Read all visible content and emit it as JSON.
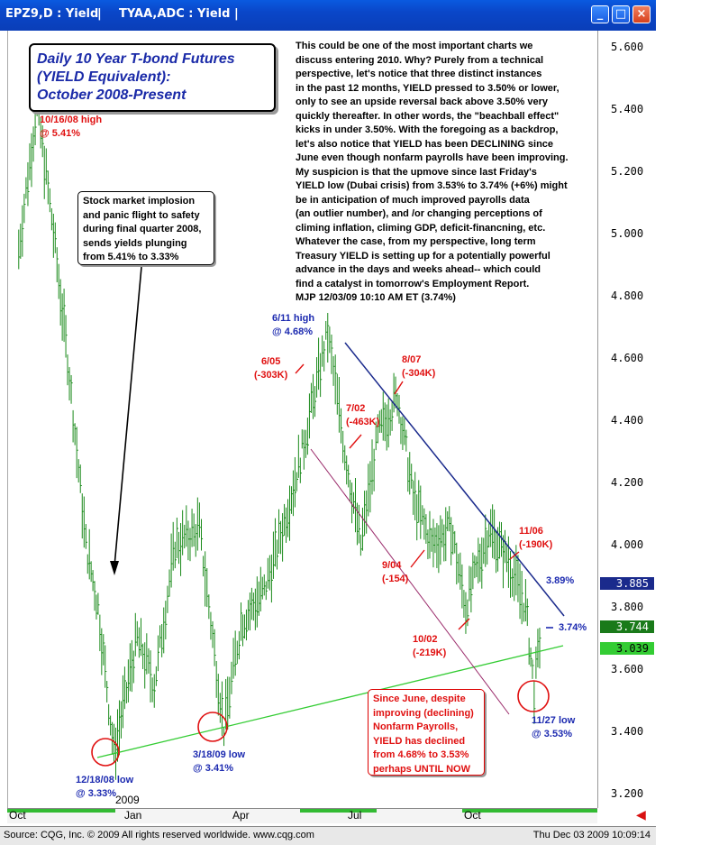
{
  "window": {
    "title_left": "EPZ9,D : Yield",
    "title_right": "TYAA,ADC : Yield",
    "buttons": [
      "minimize",
      "maximize",
      "close"
    ]
  },
  "chart_title": [
    "Daily 10 Year T-bond Futures",
    "(YIELD Equivalent):",
    "October 2008-Present"
  ],
  "commentary": [
    "This could be one of the most important charts we",
    "discuss entering 2010. Why? Purely from a technical",
    "perspective, let's notice that three distinct instances",
    "in the past 12 months, YIELD pressed to 3.50% or lower,",
    "only to see an upside reversal back above 3.50% very",
    "quickly thereafter. In other words, the \"beachball effect\"",
    "kicks in under 3.50%. With the foregoing as a backdrop,",
    "let's also notice that YIELD has been DECLINING since",
    "June even though nonfarm payrolls have been improving.",
    "My suspicion is that the upmove since last Friday's",
    "YIELD low (Dubai crisis) from 3.53% to 3.74% (+6%) might",
    "be in anticipation of much improved payrolls data",
    "(an outlier number),  and /or changing perceptions of",
    "climing inflation, climing GDP, deficit-financning, etc.",
    "Whatever the case, from my perspective, long term",
    "Treasury YIELD is setting up for a potentially powerful",
    "advance in the days and weeks ahead-- which could",
    "find a catalyst in tomorrow's Employment Report.",
    "MJP  12/03/09  10:10 AM ET  (3.74%)"
  ],
  "stock_note": [
    "Stock market implosion",
    "and panic flight to safety",
    "during final quarter 2008,",
    "sends yields plunging",
    "from 5.41% to 3.33%"
  ],
  "june_note": [
    "Since June, despite",
    "improving (declining)",
    "Nonfarm Payrolls,",
    "YIELD has declined",
    "from 4.68% to 3.53%",
    "perhaps UNTIL NOW"
  ],
  "labels": {
    "high_1016": [
      "10/16/08 high",
      "@ 5.41%"
    ],
    "high_611": [
      "6/11 high",
      "@ 4.68%"
    ],
    "low_1218": [
      "12/18/08 low",
      "@ 3.33%"
    ],
    "low_318": [
      "3/18/09 low",
      "@ 3.41%"
    ],
    "low_1127": [
      "11/27 low",
      "@ 3.53%"
    ],
    "pay_605": [
      "6/05",
      "(-303K)"
    ],
    "pay_702": [
      "7/02",
      "(-463K)"
    ],
    "pay_807": [
      "8/07",
      "(-304K)"
    ],
    "pay_904": [
      "9/04",
      "(-154)"
    ],
    "pay_1002": [
      "10/02",
      "(-219K)"
    ],
    "pay_1106": [
      "11/06",
      "(-190K)"
    ],
    "line_389": "3.89%",
    "line_374": "3.74%",
    "year_2009": "2009"
  },
  "price_boxes": [
    {
      "value": "3.885",
      "bg": "#1a2a8c",
      "fg": "#ffffff"
    },
    {
      "value": "3.744",
      "bg": "#1a7a1a",
      "fg": "#ffffff"
    },
    {
      "value": "3.039",
      "bg": "#33cc33",
      "fg": "#000000"
    }
  ],
  "colors": {
    "bars": "#1a8a1a",
    "support": "#33cc33",
    "resistance": "#1a2a8c",
    "channel": "#9a2a6a",
    "red": "#e01010",
    "blue": "#1c2ab0"
  },
  "footer": {
    "source": "Source: CQG, Inc. © 2009 All rights reserved worldwide.  www.cqg.com",
    "timestamp": "Thu Dec 03 2009 10:09:14"
  },
  "chart_data": {
    "type": "ohlc",
    "y_ticks": [
      "5.600",
      "5.400",
      "5.200",
      "5.000",
      "4.800",
      "4.600",
      "4.400",
      "4.200",
      "4.000",
      "3.800",
      "3.600",
      "3.400",
      "3.200"
    ],
    "x_labels": [
      "Oct",
      "Jan",
      "Apr",
      "Jul",
      "Oct"
    ],
    "ylim": [
      3.18,
      5.68
    ],
    "grid": false,
    "series": [
      {
        "name": "TYAA,ADC : Yield",
        "points": [
          [
            "2008-10-01",
            4.95
          ],
          [
            "2008-10-16",
            5.41
          ],
          [
            "2008-10-28",
            5.05
          ],
          [
            "2008-11-10",
            4.6
          ],
          [
            "2008-11-25",
            4.0
          ],
          [
            "2008-12-05",
            3.8
          ],
          [
            "2008-12-18",
            3.33
          ],
          [
            "2009-01-06",
            3.7
          ],
          [
            "2009-01-20",
            3.55
          ],
          [
            "2009-02-06",
            4.0
          ],
          [
            "2009-02-26",
            4.05
          ],
          [
            "2009-03-18",
            3.41
          ],
          [
            "2009-04-01",
            3.75
          ],
          [
            "2009-04-20",
            3.85
          ],
          [
            "2009-05-05",
            4.05
          ],
          [
            "2009-05-21",
            4.3
          ],
          [
            "2009-06-11",
            4.68
          ],
          [
            "2009-06-25",
            4.3
          ],
          [
            "2009-07-08",
            4.0
          ],
          [
            "2009-07-22",
            4.35
          ],
          [
            "2009-08-07",
            4.48
          ],
          [
            "2009-08-20",
            4.15
          ],
          [
            "2009-09-04",
            4.0
          ],
          [
            "2009-09-20",
            4.05
          ],
          [
            "2009-10-02",
            3.8
          ],
          [
            "2009-10-21",
            4.05
          ],
          [
            "2009-11-06",
            3.95
          ],
          [
            "2009-11-20",
            3.8
          ],
          [
            "2009-11-27",
            3.53
          ],
          [
            "2009-12-03",
            3.74
          ]
        ]
      }
    ],
    "annotations": [
      "10/16/08 high @ 5.41%",
      "6/11 high @ 4.68%",
      "12/18/08 low @ 3.33%",
      "3/18/09 low @ 3.41%",
      "11/27 low @ 3.53%",
      "3.89%",
      "3.74%"
    ]
  }
}
